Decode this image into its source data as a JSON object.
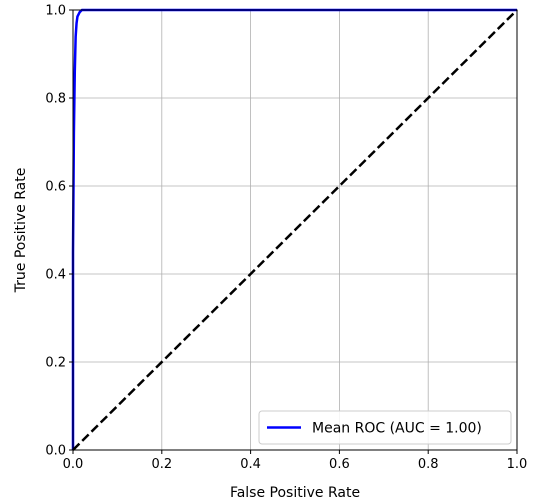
{
  "chart_data": {
    "type": "line",
    "title": "",
    "xlabel": "False Positive Rate",
    "ylabel": "True Positive Rate",
    "xlim": [
      0.0,
      1.0
    ],
    "ylim": [
      0.0,
      1.0
    ],
    "grid": true,
    "legend_position": "lower-right",
    "x_ticks": [
      0.0,
      0.2,
      0.4,
      0.6,
      0.8,
      1.0
    ],
    "y_ticks": [
      0.0,
      0.2,
      0.4,
      0.6,
      0.8,
      1.0
    ],
    "x_tick_labels": [
      "0.0",
      "0.2",
      "0.4",
      "0.6",
      "0.8",
      "1.0"
    ],
    "y_tick_labels": [
      "0.0",
      "0.2",
      "0.4",
      "0.6",
      "0.8",
      "1.0"
    ],
    "series": [
      {
        "name": "Mean ROC (AUC = 1.00)",
        "color": "#0000ff",
        "style": "solid",
        "x": [
          0.0,
          0.0,
          0.002,
          0.004,
          0.006,
          0.008,
          0.01,
          0.015,
          0.02,
          0.03,
          0.1,
          0.3,
          0.6,
          1.0
        ],
        "y": [
          0.0,
          0.45,
          0.72,
          0.86,
          0.94,
          0.97,
          0.985,
          0.995,
          1.0,
          1.0,
          1.0,
          1.0,
          1.0,
          1.0
        ]
      },
      {
        "color": "#000000",
        "style": "dashed",
        "x": [
          0.0,
          1.0
        ],
        "y": [
          0.0,
          1.0
        ]
      }
    ]
  }
}
